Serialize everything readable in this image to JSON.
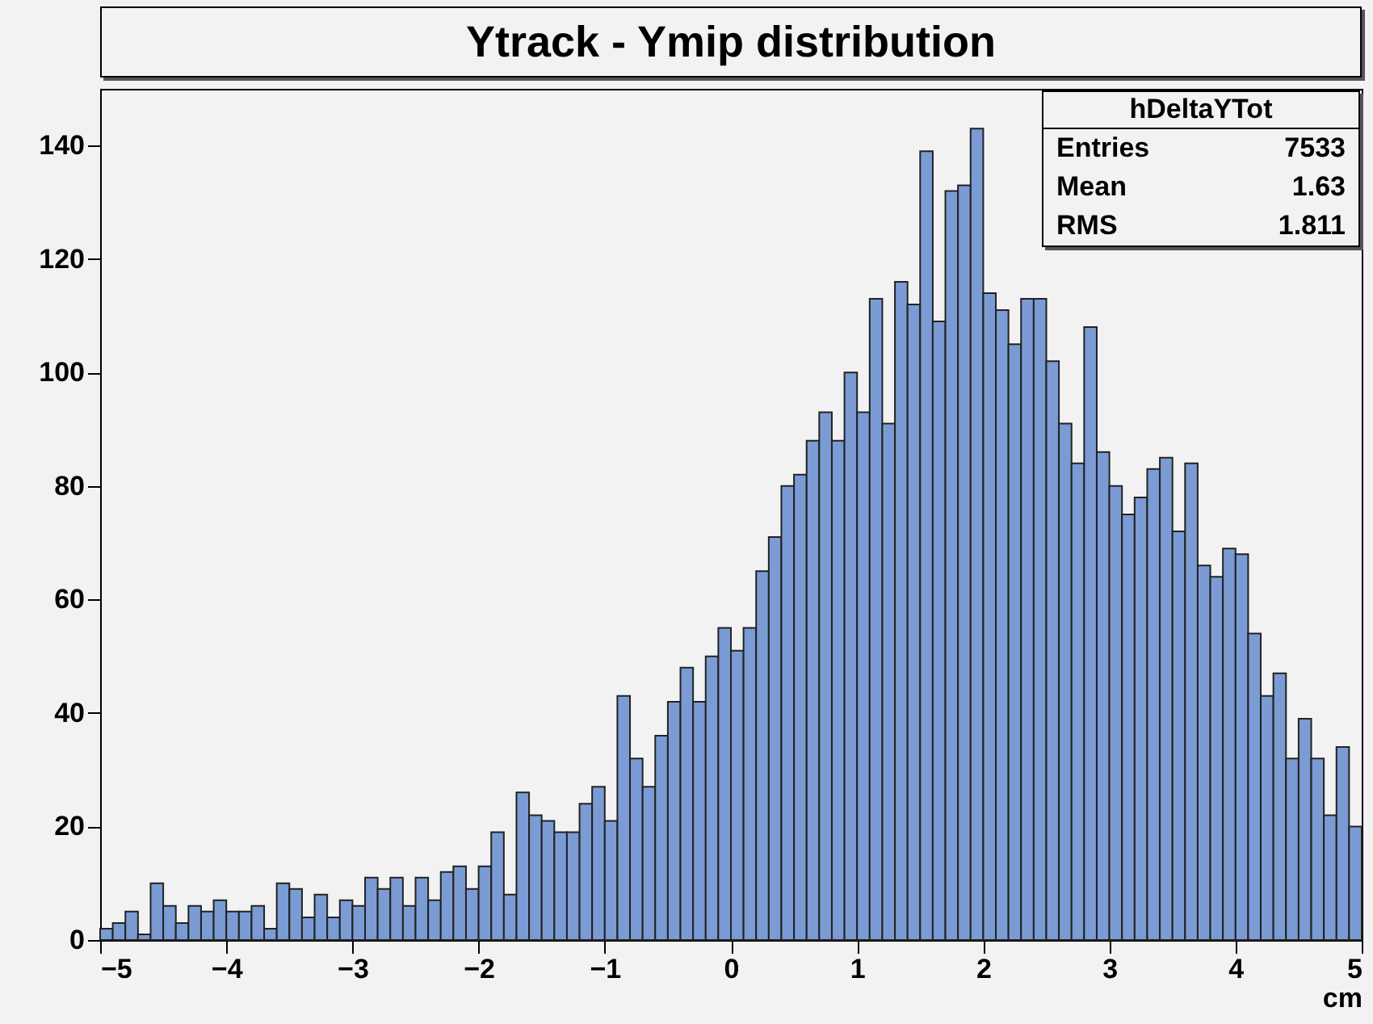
{
  "chart_data": {
    "type": "histogram",
    "title": "Ytrack - Ymip distribution",
    "xlabel": "cm",
    "bins": [
      -5,
      -4.9,
      -4.8,
      -4.7,
      -4.6,
      -4.5,
      -4.4,
      -4.3,
      -4.2,
      -4.1,
      -4,
      -3.9,
      -3.8,
      -3.7,
      -3.6,
      -3.5,
      -3.4,
      -3.3,
      -3.2,
      -3.1,
      -3,
      -2.9,
      -2.8,
      -2.7,
      -2.6,
      -2.5,
      -2.4,
      -2.3,
      -2.2,
      -2.1,
      -2,
      -1.9,
      -1.8,
      -1.7,
      -1.6,
      -1.5,
      -1.4,
      -1.3,
      -1.2,
      -1.1,
      -1,
      -0.9,
      -0.8,
      -0.7,
      -0.6,
      -0.5,
      -0.4,
      -0.3,
      -0.2,
      -0.1,
      0,
      0.1,
      0.2,
      0.3,
      0.4,
      0.5,
      0.6,
      0.7,
      0.8,
      0.9,
      1,
      1.1,
      1.2,
      1.3,
      1.4,
      1.5,
      1.6,
      1.7,
      1.8,
      1.9,
      2,
      2.1,
      2.2,
      2.3,
      2.4,
      2.5,
      2.6,
      2.7,
      2.8,
      2.9,
      3,
      3.1,
      3.2,
      3.3,
      3.4,
      3.5,
      3.6,
      3.7,
      3.8,
      3.9,
      4,
      4.1,
      4.2,
      4.3,
      4.4,
      4.5,
      4.6,
      4.7,
      4.8,
      4.9,
      5
    ],
    "values": [
      2,
      3,
      5,
      1,
      10,
      6,
      3,
      6,
      5,
      7,
      5,
      5,
      6,
      2,
      10,
      9,
      4,
      8,
      4,
      7,
      6,
      11,
      9,
      11,
      6,
      11,
      7,
      12,
      13,
      9,
      13,
      19,
      8,
      26,
      22,
      21,
      19,
      19,
      24,
      27,
      21,
      43,
      32,
      27,
      36,
      42,
      48,
      42,
      50,
      55,
      51,
      55,
      65,
      71,
      80,
      82,
      88,
      93,
      88,
      100,
      93,
      113,
      91,
      116,
      112,
      139,
      109,
      132,
      133,
      143,
      114,
      111,
      105,
      113,
      113,
      102,
      91,
      84,
      108,
      86,
      80,
      75,
      78,
      83,
      85,
      72,
      84,
      66,
      64,
      69,
      68,
      54,
      43,
      47,
      32,
      39,
      32,
      22,
      34,
      20
    ],
    "color": "#7b9bd4",
    "xlim": [
      -5,
      5
    ],
    "xticks": [
      -5,
      -4,
      -3,
      -2,
      -1,
      0,
      1,
      2,
      3,
      4,
      5
    ],
    "ylim": [
      0,
      150
    ],
    "yticks": [
      0,
      20,
      40,
      60,
      80,
      100,
      120,
      140
    ],
    "grid": false,
    "annotations": [
      "hDeltaYTot",
      "Entries",
      "7533",
      "Mean",
      "1.63",
      "RMS",
      "1.811"
    ]
  }
}
